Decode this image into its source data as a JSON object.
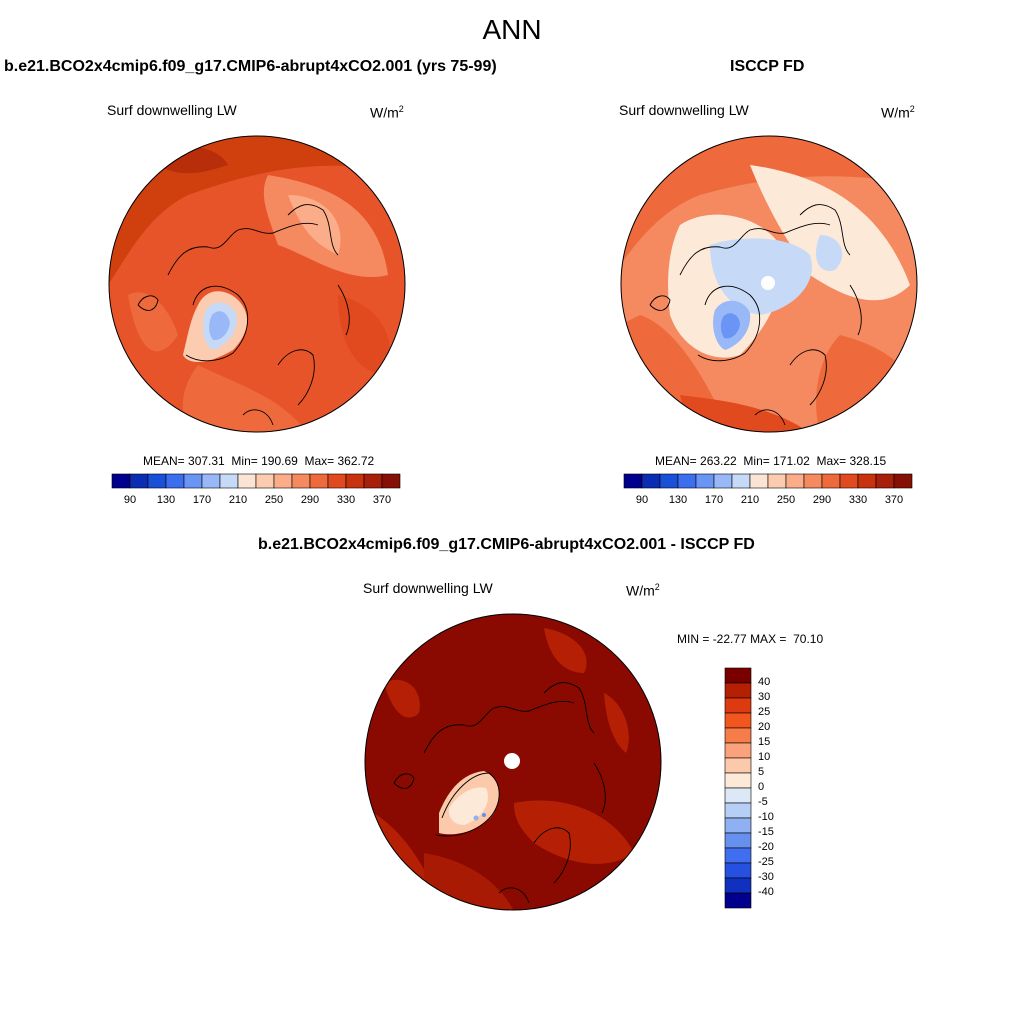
{
  "title": "ANN",
  "panels": [
    {
      "title": "b.e21.BCO2x4cmip6.f09_g17.CMIP6-abrupt4xCO2.001 (yrs 75-99)",
      "variable": "Surf downwelling LW",
      "units": "W/m",
      "units_sup": "2",
      "stats": {
        "mean_label": "MEAN=",
        "mean": "307.31",
        "min_label": "Min=",
        "min": "190.69",
        "max_label": "Max=",
        "max": "362.72"
      }
    },
    {
      "title": "ISCCP FD",
      "variable": "Surf downwelling LW",
      "units": "W/m",
      "units_sup": "2",
      "stats": {
        "mean_label": "MEAN=",
        "mean": "263.22",
        "min_label": "Min=",
        "min": "171.02",
        "max_label": "Max=",
        "max": "328.15"
      }
    }
  ],
  "diff_panel": {
    "title": "b.e21.BCO2x4cmip6.f09_g17.CMIP6-abrupt4xCO2.001 - ISCCP FD",
    "variable": "Surf downwelling LW",
    "units": "W/m",
    "units_sup": "2",
    "stats": {
      "min_label": "MIN =",
      "min": "-22.77",
      "max_label": "MAX =",
      "max": "70.10"
    }
  },
  "colorbar_abs": {
    "colors": [
      "#00008c",
      "#0a2db4",
      "#1a4fd8",
      "#3b6ff0",
      "#6a95f5",
      "#98b8f8",
      "#c6daf8",
      "#fbe4d4",
      "#fcccb0",
      "#fbac88",
      "#f58960",
      "#ee6a3c",
      "#e14a1e",
      "#c8320e",
      "#a8200a",
      "#861006"
    ],
    "labels": [
      "90",
      "130",
      "170",
      "210",
      "250",
      "290",
      "330",
      "370"
    ]
  },
  "colorbar_diff": {
    "colors": [
      "#7a0000",
      "#b52005",
      "#de3a10",
      "#f0561e",
      "#f67c4a",
      "#fba27c",
      "#fdc9ab",
      "#fde9d8",
      "#dce8f6",
      "#b8cff5",
      "#8fb0f2",
      "#6690ee",
      "#3f6ff0",
      "#2650e0",
      "#1030c0",
      "#00008c"
    ],
    "labels": [
      "40",
      "30",
      "25",
      "20",
      "15",
      "10",
      "5",
      "0",
      "-5",
      "-10",
      "-15",
      "-20",
      "-25",
      "-30",
      "-40"
    ]
  }
}
